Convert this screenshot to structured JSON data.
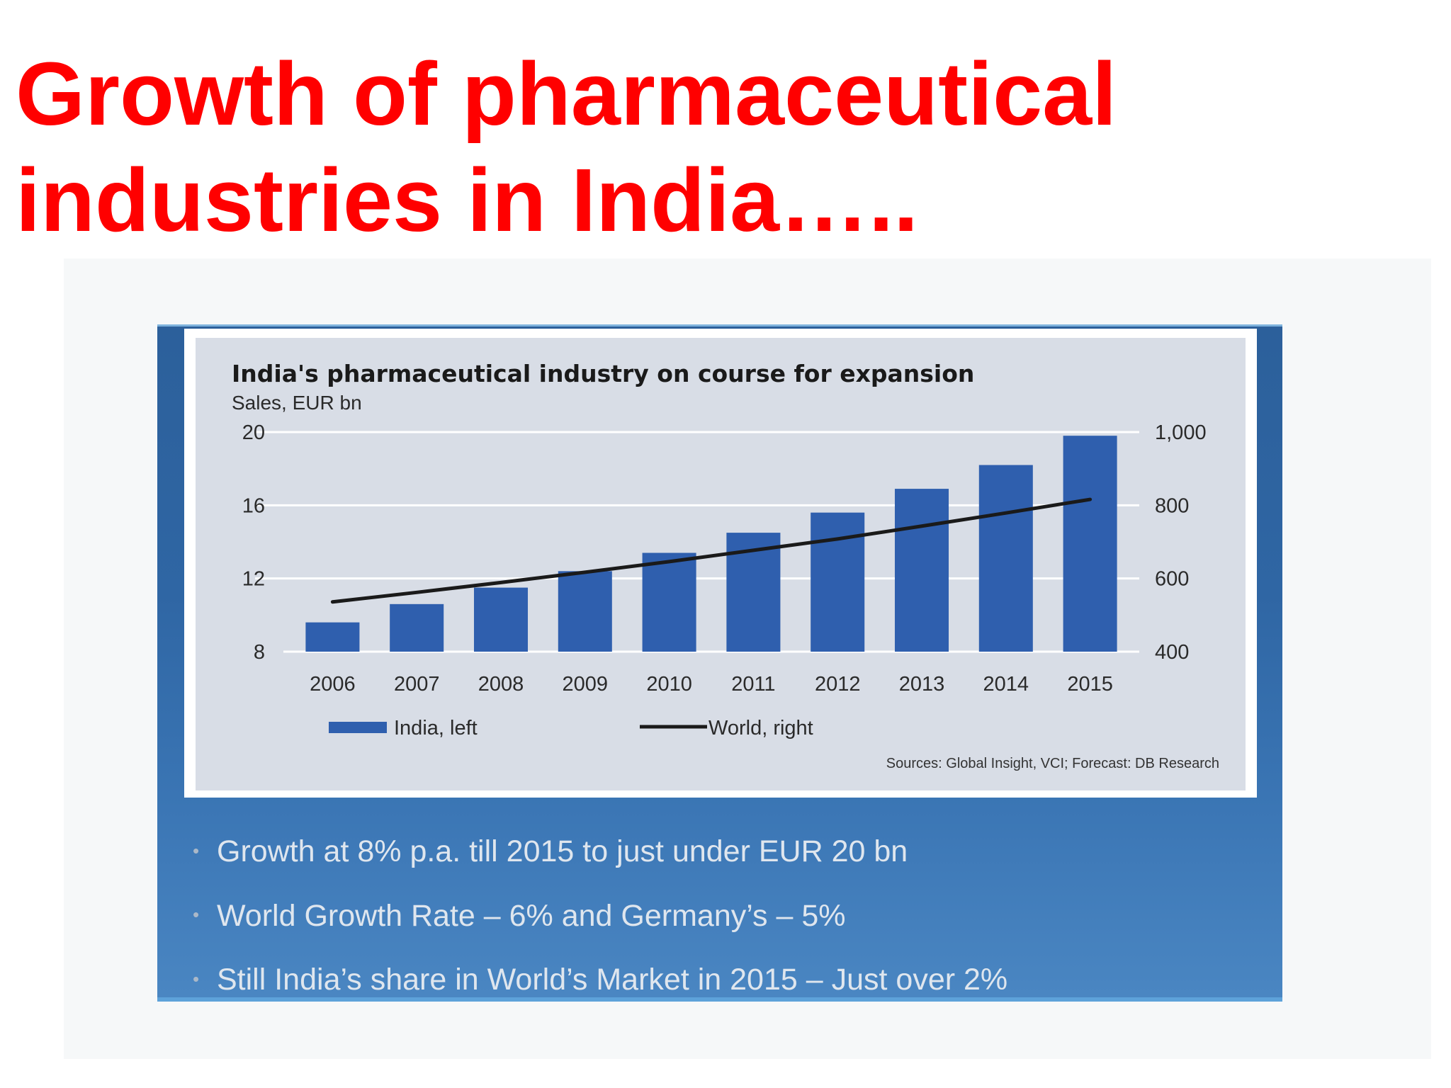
{
  "slide": {
    "title_line1": "Growth of pharmaceutical",
    "title_line2": "industries in India…..",
    "title_color": "#ff0000",
    "bullets": [
      "Growth at 8% p.a. till 2015 to just under EUR 20 bn",
      "World Growth Rate – 6% and Germany’s – 5%",
      "Still India’s share in World’s Market in 2015 – Just over 2%"
    ],
    "panel_color": "#2f66a4"
  },
  "chart_data": {
    "type": "bar",
    "title": "India's pharmaceutical industry on course for expansion",
    "subtitle": "Sales, EUR bn",
    "categories": [
      "2006",
      "2007",
      "2008",
      "2009",
      "2010",
      "2011",
      "2012",
      "2013",
      "2014",
      "2015"
    ],
    "series": [
      {
        "name": "India, left",
        "type": "bar",
        "axis": "left",
        "color": "#2f5fae",
        "values": [
          9.6,
          10.6,
          11.5,
          12.4,
          13.4,
          14.5,
          15.6,
          16.9,
          18.2,
          19.8
        ]
      },
      {
        "name": "World, right",
        "type": "line",
        "axis": "right",
        "color": "#1a1a1a",
        "values": [
          536,
          562,
          589,
          617,
          646,
          677,
          708,
          743,
          779,
          816
        ]
      }
    ],
    "left_axis": {
      "ylim": [
        8,
        20
      ],
      "ticks": [
        "20",
        "16",
        "12",
        "8"
      ],
      "tick_values": [
        20,
        16,
        12,
        8
      ]
    },
    "right_axis": {
      "ylim": [
        400,
        1000
      ],
      "ticks": [
        "1,000",
        "800",
        "600",
        "400"
      ],
      "tick_values": [
        1000,
        800,
        600,
        400
      ]
    },
    "grid": true,
    "legend_position": "bottom",
    "source": "Sources: Global Insight, VCI; Forecast: DB Research"
  }
}
